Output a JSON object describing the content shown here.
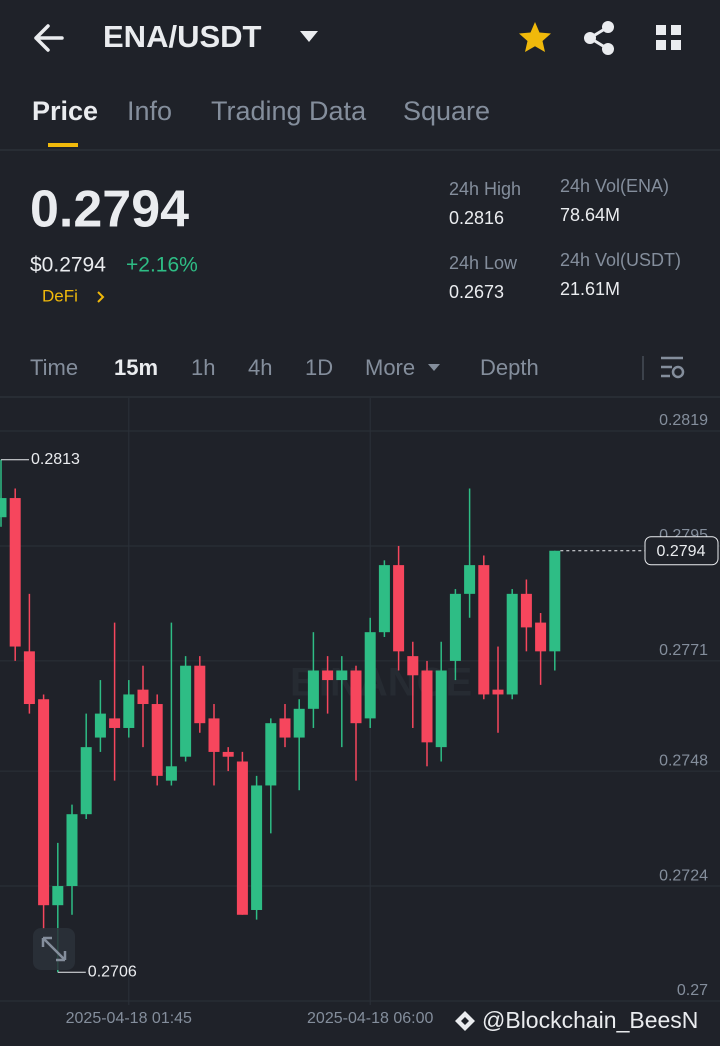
{
  "header": {
    "pair": "ENA/USDT"
  },
  "tabs": [
    "Price",
    "Info",
    "Trading Data",
    "Square"
  ],
  "ticker": {
    "price": "0.2794",
    "price_usd": "$0.2794",
    "change": "+2.16%",
    "sector": "DeFi",
    "stats": [
      {
        "label": "24h High",
        "value": "0.2816"
      },
      {
        "label": "24h Vol(ENA)",
        "value": "78.64M"
      },
      {
        "label": "24h Low",
        "value": "0.2673"
      },
      {
        "label": "24h Vol(USDT)",
        "value": "21.61M"
      }
    ]
  },
  "intervals": [
    "Time",
    "15m",
    "1h",
    "4h",
    "1D",
    "More",
    "Depth"
  ],
  "watermark": "@Blockchain_BeesN",
  "chart_data": {
    "type": "candlestick",
    "categories": [
      null,
      null,
      null,
      null,
      null,
      null,
      null,
      null,
      null,
      "2025-04-18 01:45",
      null,
      null,
      null,
      null,
      null,
      null,
      null,
      null,
      null,
      null,
      null,
      null,
      null,
      null,
      null,
      null,
      "2025-04-18 06:00",
      null,
      null,
      null,
      null,
      null,
      null,
      null,
      null,
      null,
      null,
      null,
      null,
      null
    ],
    "open": [
      0.2801,
      0.2805,
      0.2773,
      0.2763,
      0.272,
      0.2724,
      0.2739,
      0.2755,
      0.2759,
      0.2757,
      0.2765,
      0.2762,
      0.2746,
      0.2751,
      0.277,
      0.2759,
      0.2752,
      0.275,
      0.2719,
      0.2745,
      0.2759,
      0.2755,
      0.2761,
      0.2769,
      0.2767,
      0.2769,
      0.2759,
      0.2777,
      0.2791,
      0.2772,
      0.2769,
      0.2753,
      0.2771,
      0.2785,
      0.2791,
      0.2765,
      0.2764,
      0.2785,
      0.2779,
      0.2773
    ],
    "high": [
      0.2813,
      0.2807,
      0.2785,
      0.2764,
      0.2733,
      0.2741,
      0.276,
      0.2767,
      0.2779,
      0.2767,
      0.277,
      0.2764,
      0.2779,
      0.2772,
      0.2772,
      0.2762,
      0.2753,
      0.2752,
      0.2747,
      0.2759,
      0.2762,
      0.2763,
      0.2777,
      0.2772,
      0.2772,
      0.277,
      0.278,
      0.2792,
      0.2795,
      0.2775,
      0.2771,
      0.2775,
      0.2786,
      0.2807,
      0.2793,
      0.2774,
      0.2786,
      0.2788,
      0.2781,
      0.2794
    ],
    "low": [
      0.2799,
      0.2771,
      0.276,
      0.2715,
      0.2706,
      0.2718,
      0.2738,
      0.2752,
      0.2746,
      0.2755,
      0.2753,
      0.2745,
      0.2745,
      0.275,
      0.2756,
      0.2745,
      0.2748,
      0.2718,
      0.2717,
      0.2735,
      0.2753,
      0.2744,
      0.2757,
      0.276,
      0.2753,
      0.2746,
      0.2757,
      0.2776,
      0.2769,
      0.2757,
      0.2749,
      0.275,
      0.2767,
      0.278,
      0.2763,
      0.2756,
      0.2763,
      0.2773,
      0.2766,
      0.2769
    ],
    "close": [
      0.2805,
      0.2774,
      0.2762,
      0.272,
      0.2724,
      0.2739,
      0.2753,
      0.276,
      0.2757,
      0.2764,
      0.2762,
      0.2747,
      0.2749,
      0.277,
      0.2758,
      0.2752,
      0.2751,
      0.2718,
      0.2745,
      0.2758,
      0.2755,
      0.2761,
      0.2769,
      0.2767,
      0.2769,
      0.2758,
      0.2777,
      0.2791,
      0.2773,
      0.2768,
      0.2754,
      0.2769,
      0.2785,
      0.2791,
      0.2764,
      0.2764,
      0.2785,
      0.2778,
      0.2773,
      0.2794
    ],
    "up_color": "#2ebd85",
    "down_color": "#f6465d",
    "ylim": [
      0.27,
      0.2819
    ],
    "yticks": [
      0.2819,
      0.2795,
      0.2771,
      0.2748,
      0.2724,
      0.27
    ],
    "max_label": 0.2813,
    "min_label": 0.2706,
    "last_price": 0.2794,
    "watermark": "BINANCE",
    "grid": true
  }
}
